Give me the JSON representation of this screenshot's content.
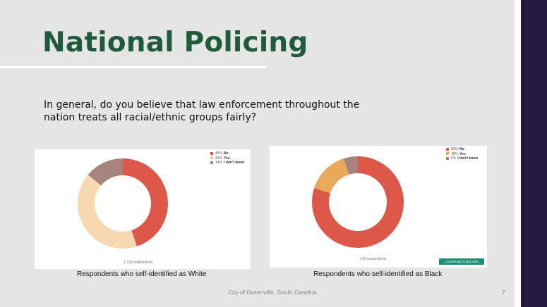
{
  "slide": {
    "title": "National Policing",
    "question": "In general, do you believe that law enforcement throughout the nation treats all racial/ethnic groups fairly?",
    "footer": "City of Greenville, South Carolina",
    "page_number": "7"
  },
  "colors": {
    "title": "#1f5a3a",
    "no": "#de584a",
    "yes_white": "#f6d9b1",
    "yes_black": "#e8a95b",
    "dont_know": "#a6837d",
    "download_button": "#1f8f73"
  },
  "chart_data": [
    {
      "type": "pie",
      "donut": true,
      "legend_position": "top-right",
      "categories": [
        "No",
        "Yes",
        "I don't know"
      ],
      "values": [
        45,
        41,
        14
      ],
      "legend_labels": [
        "45%",
        "41%",
        "14%"
      ],
      "colors": [
        "#de584a",
        "#f6d9b1",
        "#a6837d"
      ],
      "respondents_label": "1,739 respondents",
      "caption": "Respondents who self-identified as White"
    },
    {
      "type": "pie",
      "donut": true,
      "legend_position": "top-right",
      "categories": [
        "No",
        "Yes",
        "I don't know"
      ],
      "values": [
        80,
        15,
        5
      ],
      "legend_labels": [
        "80%",
        "15%",
        "5%"
      ],
      "colors": [
        "#de584a",
        "#e8a95b",
        "#a6837d"
      ],
      "respondents_label": "143 respondents",
      "download_label": "Download Graph Data",
      "caption": "Respondents who self-identified as Black"
    }
  ]
}
